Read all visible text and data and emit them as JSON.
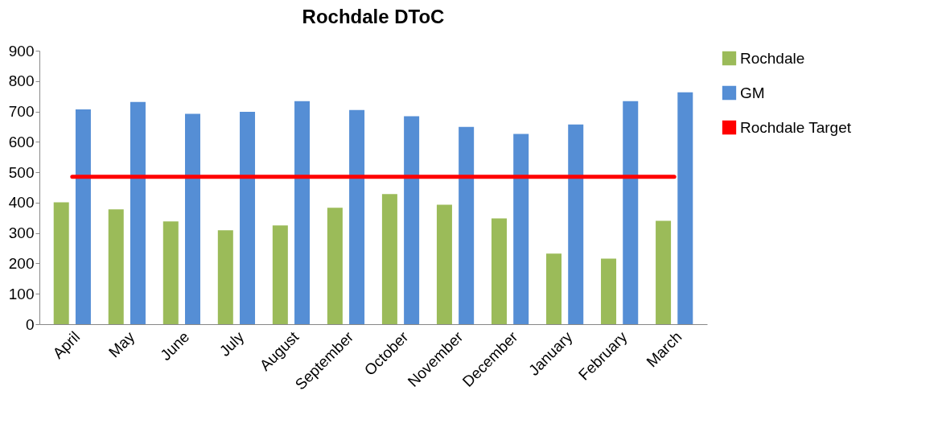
{
  "chart_data": {
    "type": "bar",
    "title": "Rochdale DToC",
    "categories": [
      "April",
      "May",
      "June",
      "July",
      "August",
      "September",
      "October",
      "November",
      "December",
      "January",
      "February",
      "March"
    ],
    "series": [
      {
        "name": "Rochdale",
        "color": "#9bbb59",
        "values": [
          401,
          378,
          338,
          309,
          325,
          383,
          428,
          393,
          348,
          232,
          216,
          340
        ]
      },
      {
        "name": "GM",
        "color": "#558ed5",
        "values": [
          707,
          731,
          692,
          699,
          734,
          705,
          684,
          649,
          626,
          657,
          734,
          763
        ]
      },
      {
        "name": "Rochdale Target",
        "type": "line",
        "color": "#ff0000",
        "values": [
          485,
          485,
          485,
          485,
          485,
          485,
          485,
          485,
          485,
          485,
          485,
          485
        ]
      }
    ],
    "ylim": [
      0,
      900
    ],
    "yticks": [
      0,
      100,
      200,
      300,
      400,
      500,
      600,
      700,
      800,
      900
    ],
    "grid": false,
    "legend": "right",
    "marker": "none"
  }
}
